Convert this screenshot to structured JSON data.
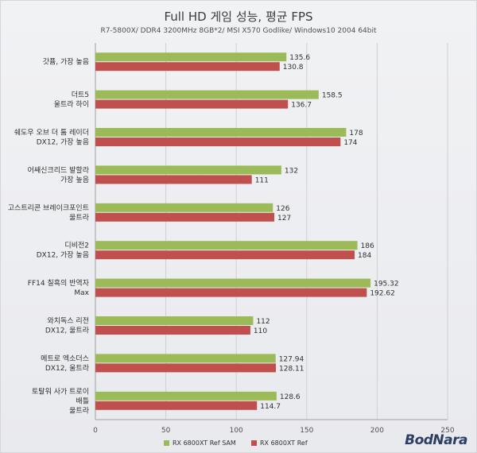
{
  "header": {
    "title": "Full HD 게임 성능, 평균 FPS",
    "subtitle": "R7-5800X/ DDR4 3200MHz 8GB*2/ MSI X570 Godlike/ Windows10 2004 64bit"
  },
  "brand": {
    "logo_text": "BodNara"
  },
  "colors": {
    "sam": "#9bbb59",
    "ref": "#c0504d",
    "grid": "#d0d0d4",
    "axis": "#a0a0a0"
  },
  "chart_data": {
    "type": "bar",
    "orientation": "horizontal",
    "title": "Full HD 게임 성능, 평균 FPS",
    "subtitle": "R7-5800X/ DDR4 3200MHz 8GB*2/ MSI X570 Godlike/ Windows10 2004 64bit",
    "xlim": [
      0,
      250
    ],
    "xticks": [
      0,
      50,
      100,
      150,
      200,
      250
    ],
    "grid": true,
    "legend": "bottom",
    "categories": [
      [
        "갓퓸, 가장 높음"
      ],
      [
        "더트5",
        "울트라 하이"
      ],
      [
        "쉐도우 오브 더 툼 레이더",
        "DX12, 가장 높음"
      ],
      [
        "어쌔신크리드 발할라",
        "가장 높음"
      ],
      [
        "고스트리콘 브레이크포인트",
        "울트라"
      ],
      [
        "디비전2",
        "DX12, 가장 높음"
      ],
      [
        "FF14 칠흑의 반역자",
        "Max"
      ],
      [
        "와치독스 리전",
        "DX12, 울트라"
      ],
      [
        "메트로 엑소더스",
        "DX12, 울트라"
      ],
      [
        "토탈워 사가 트로이",
        "배틀",
        "울트라"
      ]
    ],
    "series": [
      {
        "name": "RX 6800XT Ref SAM",
        "color": "#9bbb59",
        "values": [
          135.6,
          158.5,
          178,
          132,
          126,
          186,
          195.32,
          112,
          127.94,
          128.6
        ],
        "labels": [
          "135.6",
          "158.5",
          "178",
          "132",
          "126",
          "186",
          "195.32",
          "112",
          "127.94",
          "128.6"
        ]
      },
      {
        "name": "RX 6800XT Ref",
        "color": "#c0504d",
        "values": [
          130.8,
          136.7,
          174,
          111,
          127,
          184,
          192.62,
          110,
          128.11,
          114.7
        ],
        "labels": [
          "130.8",
          "136.7",
          "174",
          "111",
          "127",
          "184",
          "192.62",
          "110",
          "128.11",
          "114.7"
        ]
      }
    ]
  }
}
